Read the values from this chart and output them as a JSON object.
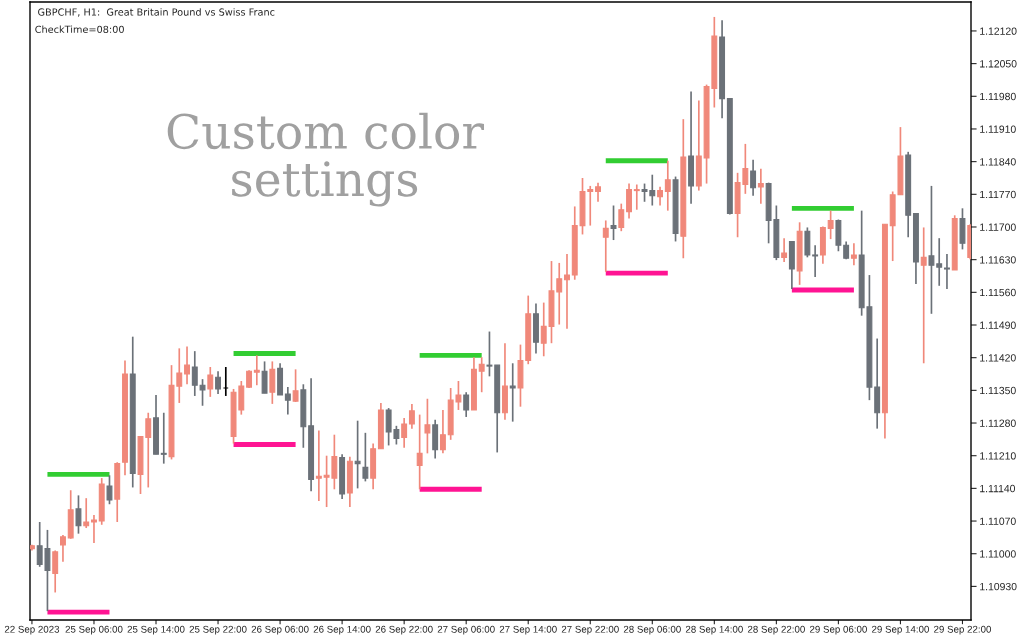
{
  "chart_data": {
    "type": "candlestick",
    "title": "GBPCHF, H1:  Great Britain Pound vs Swiss Franc",
    "subtitle": "CheckTime=08:00",
    "annotations": [
      "Custom color settings"
    ],
    "categories": [
      "22 Sep 2023",
      null,
      null,
      null,
      null,
      null,
      null,
      null,
      "25 Sep 06:00",
      null,
      null,
      null,
      null,
      null,
      null,
      null,
      "25 Sep 14:00",
      null,
      null,
      null,
      null,
      null,
      null,
      null,
      "25 Sep 22:00",
      null,
      null,
      null,
      null,
      null,
      null,
      null,
      "26 Sep 06:00",
      null,
      null,
      null,
      null,
      null,
      null,
      null,
      "26 Sep 14:00",
      null,
      null,
      null,
      null,
      null,
      null,
      null,
      "26 Sep 22:00",
      null,
      null,
      null,
      null,
      null,
      null,
      null,
      "27 Sep 06:00",
      null,
      null,
      null,
      null,
      null,
      null,
      null,
      "27 Sep 14:00",
      null,
      null,
      null,
      null,
      null,
      null,
      null,
      "27 Sep 22:00",
      null,
      null,
      null,
      null,
      null,
      null,
      null,
      "28 Sep 06:00",
      null,
      null,
      null,
      null,
      null,
      null,
      null,
      "28 Sep 14:00",
      null,
      null,
      null,
      null,
      null,
      null,
      null,
      "28 Sep 22:00",
      null,
      null,
      null,
      null,
      null,
      null,
      null,
      "29 Sep 06:00",
      null,
      null,
      null,
      null,
      null,
      null,
      null,
      "29 Sep 14:00",
      null,
      null,
      null,
      null,
      null,
      null,
      null,
      "29 Sep 22:00",
      null
    ],
    "ohlc": [
      [
        1.11011,
        1.11019,
        1.11007,
        1.11017
      ],
      [
        1.11017,
        1.11068,
        1.10972,
        1.10977
      ],
      [
        1.11011,
        1.11051,
        1.10877,
        1.10964
      ],
      [
        1.10958,
        1.11007,
        1.10917,
        1.11004
      ],
      [
        1.11019,
        1.1104,
        1.10983,
        1.11036
      ],
      [
        1.11034,
        1.11136,
        1.11032,
        1.11094
      ],
      [
        1.11096,
        1.11125,
        1.11043,
        1.1106
      ],
      [
        1.1106,
        1.11119,
        1.11055,
        1.11068
      ],
      [
        1.11068,
        1.11083,
        1.11023,
        1.11072
      ],
      [
        1.1107,
        1.11162,
        1.11062,
        1.11149
      ],
      [
        1.11145,
        1.11168,
        1.11106,
        1.11115
      ],
      [
        1.11117,
        1.11196,
        1.11068,
        1.11193
      ],
      [
        1.11196,
        1.11414,
        1.11168,
        1.11385
      ],
      [
        1.11385,
        1.11465,
        1.11142,
        1.11172
      ],
      [
        1.1117,
        1.11251,
        1.11128,
        1.11251
      ],
      [
        1.11249,
        1.11302,
        1.11142,
        1.11289
      ],
      [
        1.11291,
        1.1134,
        1.11213,
        1.11213
      ],
      [
        1.11215,
        1.11302,
        1.11193,
        1.11213
      ],
      [
        1.11208,
        1.11404,
        1.11202,
        1.11361
      ],
      [
        1.11359,
        1.1144,
        1.11323,
        1.11387
      ],
      [
        1.11385,
        1.11444,
        1.11363,
        1.11404
      ],
      [
        1.114,
        1.11434,
        1.11338,
        1.11361
      ],
      [
        1.11361,
        1.11374,
        1.11317,
        1.11351
      ],
      [
        1.11353,
        1.114,
        1.11336,
        1.11383
      ],
      [
        1.11378,
        1.11391,
        1.11342,
        1.11353
      ],
      [
        1.11355,
        1.114,
        1.11338,
        1.11355
      ],
      [
        1.11251,
        1.11353,
        1.11236,
        1.11346
      ],
      [
        1.11308,
        1.1137,
        1.11298,
        1.11359
      ],
      [
        1.11357,
        1.11393,
        1.11355,
        1.11391
      ],
      [
        1.11389,
        1.11425,
        1.11361,
        1.11393
      ],
      [
        1.11391,
        1.11412,
        1.11344,
        1.11344
      ],
      [
        1.11346,
        1.11412,
        1.11321,
        1.11395
      ],
      [
        1.11397,
        1.11408,
        1.1134,
        1.1134
      ],
      [
        1.11342,
        1.11357,
        1.11298,
        1.11329
      ],
      [
        1.11327,
        1.11395,
        1.11325,
        1.11349
      ],
      [
        1.11351,
        1.11363,
        1.11227,
        1.11272
      ],
      [
        1.11274,
        1.11376,
        1.11134,
        1.11159
      ],
      [
        1.11162,
        1.11264,
        1.11113,
        1.11166
      ],
      [
        1.11164,
        1.1121,
        1.111,
        1.11168
      ],
      [
        1.11162,
        1.11255,
        1.11138,
        1.11208
      ],
      [
        1.11206,
        1.11213,
        1.11117,
        1.11128
      ],
      [
        1.1113,
        1.11208,
        1.111,
        1.11198
      ],
      [
        1.11198,
        1.11285,
        1.1114,
        1.11193
      ],
      [
        1.11185,
        1.11259,
        1.11155,
        1.11162
      ],
      [
        1.11162,
        1.11236,
        1.11138,
        1.11225
      ],
      [
        1.11225,
        1.11323,
        1.11225,
        1.11308
      ],
      [
        1.11308,
        1.11312,
        1.11232,
        1.11261
      ],
      [
        1.11266,
        1.11274,
        1.11234,
        1.11247
      ],
      [
        1.11249,
        1.11291,
        1.11227,
        1.11278
      ],
      [
        1.11278,
        1.11321,
        1.11268,
        1.11306
      ],
      [
        1.11189,
        1.11298,
        1.11138,
        1.11215
      ],
      [
        1.11259,
        1.11332,
        1.11215,
        1.11276
      ],
      [
        1.11276,
        1.11287,
        1.11204,
        1.11223
      ],
      [
        1.11223,
        1.11308,
        1.11215,
        1.11255
      ],
      [
        1.11255,
        1.11355,
        1.11244,
        1.11329
      ],
      [
        1.11325,
        1.1137,
        1.11308,
        1.1134
      ],
      [
        1.1134,
        1.11346,
        1.11293,
        1.11308
      ],
      [
        1.11308,
        1.11421,
        1.11308,
        1.11395
      ],
      [
        1.11391,
        1.11421,
        1.11346,
        1.11406
      ],
      [
        1.11404,
        1.11476,
        1.1138,
        1.11402
      ],
      [
        1.11404,
        1.11404,
        1.11217,
        1.11302
      ],
      [
        1.11302,
        1.11451,
        1.11287,
        1.11359
      ],
      [
        1.11359,
        1.11408,
        1.11283,
        1.11355
      ],
      [
        1.11355,
        1.11448,
        1.11315,
        1.11414
      ],
      [
        1.11414,
        1.11553,
        1.11406,
        1.11514
      ],
      [
        1.11514,
        1.11536,
        1.11429,
        1.11453
      ],
      [
        1.11451,
        1.11538,
        1.11423,
        1.11487
      ],
      [
        1.11487,
        1.11627,
        1.11451,
        1.11563
      ],
      [
        1.11561,
        1.11623,
        1.11491,
        1.11589
      ],
      [
        1.11587,
        1.11642,
        1.11482,
        1.11597
      ],
      [
        1.11597,
        1.11744,
        1.11587,
        1.11703
      ],
      [
        1.11703,
        1.11805,
        1.11684,
        1.11776
      ],
      [
        1.11776,
        1.11788,
        1.11703,
        1.1178
      ],
      [
        1.11776,
        1.11795,
        1.11754,
        1.11786
      ],
      [
        1.11678,
        1.11714,
        1.11604,
        1.11697
      ],
      [
        1.11703,
        1.11746,
        1.11672,
        1.11697
      ],
      [
        1.11699,
        1.1175,
        1.11691,
        1.11737
      ],
      [
        1.11733,
        1.11793,
        1.11718,
        1.1178
      ],
      [
        1.11778,
        1.11791,
        1.11737,
        1.1178
      ],
      [
        1.1178,
        1.11793,
        1.11754,
        1.11776
      ],
      [
        1.11778,
        1.11812,
        1.11746,
        1.11767
      ],
      [
        1.11765,
        1.11786,
        1.11746,
        1.11778
      ],
      [
        1.11776,
        1.11842,
        1.11735,
        1.11801
      ],
      [
        1.11801,
        1.11808,
        1.11669,
        1.11686
      ],
      [
        1.1168,
        1.11931,
        1.11633,
        1.1185
      ],
      [
        1.11852,
        1.1199,
        1.1175,
        1.11788
      ],
      [
        1.11788,
        1.11971,
        1.11778,
        1.11852
      ],
      [
        1.11848,
        1.12005,
        1.11793,
        1.12001
      ],
      [
        1.11997,
        1.1215,
        1.11956,
        1.12109
      ],
      [
        1.12107,
        1.12143,
        1.11933,
        1.11975
      ],
      [
        1.11975,
        1.11975,
        1.11727,
        1.11729
      ],
      [
        1.11729,
        1.11816,
        1.11678,
        1.11795
      ],
      [
        1.11791,
        1.11878,
        1.11771,
        1.11825
      ],
      [
        1.1182,
        1.11844,
        1.11767,
        1.11784
      ],
      [
        1.11786,
        1.11825,
        1.1175,
        1.11793
      ],
      [
        1.11793,
        1.11795,
        1.11665,
        1.11714
      ],
      [
        1.11716,
        1.11746,
        1.11629,
        1.11635
      ],
      [
        1.11635,
        1.11676,
        1.11625,
        1.11644
      ],
      [
        1.11669,
        1.11669,
        1.11567,
        1.1161
      ],
      [
        1.11606,
        1.1171,
        1.11576,
        1.11691
      ],
      [
        1.11691,
        1.11699,
        1.11635,
        1.1164
      ],
      [
        1.1164,
        1.11661,
        1.11593,
        1.11638
      ],
      [
        1.1164,
        1.11701,
        1.11621,
        1.11699
      ],
      [
        1.11697,
        1.11735,
        1.11674,
        1.11714
      ],
      [
        1.11714,
        1.11716,
        1.11648,
        1.11661
      ],
      [
        1.11661,
        1.11669,
        1.11631,
        1.11633
      ],
      [
        1.11633,
        1.11665,
        1.11618,
        1.1164
      ],
      [
        1.1164,
        1.11735,
        1.1151,
        1.11527
      ],
      [
        1.11529,
        1.11597,
        1.11329,
        1.11357
      ],
      [
        1.11357,
        1.11461,
        1.11268,
        1.11302
      ],
      [
        1.11302,
        1.11706,
        1.11247,
        1.11706
      ],
      [
        1.11703,
        1.11776,
        1.11627,
        1.11769
      ],
      [
        1.11769,
        1.11914,
        1.11769,
        1.11852
      ],
      [
        1.11854,
        1.11861,
        1.11678,
        1.11725
      ],
      [
        1.11729,
        1.11729,
        1.11578,
        1.11625
      ],
      [
        1.11618,
        1.11699,
        1.11408,
        1.11635
      ],
      [
        1.11638,
        1.11788,
        1.11514,
        1.11618
      ],
      [
        1.11621,
        1.11676,
        1.11574,
        1.11614
      ],
      [
        1.11612,
        1.11642,
        1.11567,
        1.1161
      ],
      [
        1.11608,
        1.11725,
        1.11608,
        1.11718
      ],
      [
        1.11718,
        1.1174,
        1.11652,
        1.11665
      ],
      [
        1.11635,
        1.11706,
        1.11631,
        1.11703
      ]
    ],
    "colors": [
      "#f0887a",
      "#6b7178",
      "#6b7178",
      "#f0887a",
      "#f0887a",
      "#f0887a",
      "#6b7178",
      "#f0887a",
      "#f0887a",
      "#f0887a",
      "#6b7178",
      "#f0887a",
      "#f0887a",
      "#6b7178",
      "#f0887a",
      "#f0887a",
      "#6b7178",
      "#6b7178",
      "#f0887a",
      "#f0887a",
      "#f0887a",
      "#6b7178",
      "#6b7178",
      "#f0887a",
      "#6b7178",
      "#000000",
      "#f0887a",
      "#f0887a",
      "#f0887a",
      "#f0887a",
      "#6b7178",
      "#f0887a",
      "#6b7178",
      "#6b7178",
      "#f0887a",
      "#6b7178",
      "#6b7178",
      "#f0887a",
      "#f0887a",
      "#f0887a",
      "#6b7178",
      "#f0887a",
      "#6b7178",
      "#6b7178",
      "#f0887a",
      "#f0887a",
      "#6b7178",
      "#6b7178",
      "#f0887a",
      "#f0887a",
      "#f0887a",
      "#f0887a",
      "#6b7178",
      "#f0887a",
      "#f0887a",
      "#f0887a",
      "#6b7178",
      "#f0887a",
      "#f0887a",
      "#6b7178",
      "#6b7178",
      "#f0887a",
      "#6b7178",
      "#f0887a",
      "#f0887a",
      "#6b7178",
      "#f0887a",
      "#f0887a",
      "#f0887a",
      "#f0887a",
      "#f0887a",
      "#f0887a",
      "#f0887a",
      "#f0887a",
      "#f0887a",
      "#6b7178",
      "#f0887a",
      "#f0887a",
      "#f0887a",
      "#6b7178",
      "#6b7178",
      "#f0887a",
      "#f0887a",
      "#6b7178",
      "#f0887a",
      "#6b7178",
      "#f0887a",
      "#f0887a",
      "#f0887a",
      "#6b7178",
      "#6b7178",
      "#f0887a",
      "#f0887a",
      "#6b7178",
      "#f0887a",
      "#6b7178",
      "#6b7178",
      "#f0887a",
      "#6b7178",
      "#f0887a",
      "#6b7178",
      "#6b7178",
      "#f0887a",
      "#f0887a",
      "#6b7178",
      "#6b7178",
      "#f0887a",
      "#6b7178",
      "#6b7178",
      "#6b7178",
      "#f0887a",
      "#f0887a",
      "#f0887a",
      "#6b7178",
      "#6b7178",
      "#f0887a",
      "#6b7178",
      "#6b7178",
      "#6b7178",
      "#f0887a",
      "#6b7178",
      "#f0887a"
    ],
    "series": [
      {
        "type": "line",
        "color": "#32cd32",
        "values": [
          null,
          null,
          1.1117,
          1.1117,
          1.1117,
          1.1117,
          1.1117,
          1.1117,
          1.1117,
          1.1117,
          1.1117,
          null,
          null,
          null,
          null,
          null,
          null,
          null,
          null,
          null,
          null,
          null,
          null,
          null,
          null,
          null,
          1.11429,
          1.11429,
          1.11429,
          1.11429,
          1.11429,
          1.11429,
          1.11429,
          1.11429,
          1.11429,
          null,
          null,
          null,
          null,
          null,
          null,
          null,
          null,
          null,
          null,
          null,
          null,
          null,
          null,
          null,
          1.11425,
          1.11425,
          1.11425,
          1.11425,
          1.11425,
          1.11425,
          1.11425,
          1.11425,
          1.11425,
          null,
          null,
          null,
          null,
          null,
          null,
          null,
          null,
          null,
          null,
          null,
          null,
          null,
          null,
          null,
          1.11842,
          1.11842,
          1.11842,
          1.11842,
          1.11842,
          1.11842,
          1.11842,
          1.11842,
          1.11842,
          null,
          null,
          null,
          null,
          null,
          null,
          null,
          null,
          null,
          null,
          null,
          null,
          null,
          null,
          null,
          1.1174,
          1.1174,
          1.1174,
          1.1174,
          1.1174,
          1.1174,
          1.1174,
          1.1174,
          1.1174,
          null,
          null,
          null,
          null,
          null,
          null,
          null,
          null,
          null,
          null,
          null,
          null,
          null,
          null,
          null
        ]
      },
      {
        "type": "line",
        "color": "#ff1493",
        "values": [
          null,
          null,
          1.10875,
          1.10875,
          1.10875,
          1.10875,
          1.10875,
          1.10875,
          1.10875,
          1.10875,
          1.10875,
          null,
          null,
          null,
          null,
          null,
          null,
          null,
          null,
          null,
          null,
          null,
          null,
          null,
          null,
          null,
          1.11234,
          1.11234,
          1.11234,
          1.11234,
          1.11234,
          1.11234,
          1.11234,
          1.11234,
          1.11234,
          null,
          null,
          null,
          null,
          null,
          null,
          null,
          null,
          null,
          null,
          null,
          null,
          null,
          null,
          null,
          1.11138,
          1.11138,
          1.11138,
          1.11138,
          1.11138,
          1.11138,
          1.11138,
          1.11138,
          1.11138,
          null,
          null,
          null,
          null,
          null,
          null,
          null,
          null,
          null,
          null,
          null,
          null,
          null,
          null,
          null,
          1.11601,
          1.11601,
          1.11601,
          1.11601,
          1.11601,
          1.11601,
          1.11601,
          1.11601,
          1.11601,
          null,
          null,
          null,
          null,
          null,
          null,
          null,
          null,
          null,
          null,
          null,
          null,
          null,
          null,
          null,
          1.11565,
          1.11565,
          1.11565,
          1.11565,
          1.11565,
          1.11565,
          1.11565,
          1.11565,
          1.11565,
          null,
          null,
          null,
          null,
          null,
          null,
          null,
          null,
          null,
          null,
          null,
          null,
          null,
          null,
          null
        ]
      }
    ],
    "ylim": [
      1.10858,
      1.12182
    ],
    "yticks": [
      {
        "value": 1.1093,
        "label": "1.10930"
      },
      {
        "value": 1.11,
        "label": "1.11000"
      },
      {
        "value": 1.1107,
        "label": "1.11070"
      },
      {
        "value": 1.1114,
        "label": "1.11140"
      },
      {
        "value": 1.1121,
        "label": "1.11210"
      },
      {
        "value": 1.1128,
        "label": "1.11280"
      },
      {
        "value": 1.1135,
        "label": "1.11350"
      },
      {
        "value": 1.1142,
        "label": "1.11420"
      },
      {
        "value": 1.1149,
        "label": "1.11490"
      },
      {
        "value": 1.1156,
        "label": "1.11560"
      },
      {
        "value": 1.1163,
        "label": "1.11630"
      },
      {
        "value": 1.117,
        "label": "1.11700"
      },
      {
        "value": 1.1177,
        "label": "1.11770"
      },
      {
        "value": 1.1184,
        "label": "1.11840"
      },
      {
        "value": 1.1191,
        "label": "1.11910"
      },
      {
        "value": 1.1198,
        "label": "1.11980"
      },
      {
        "value": 1.1205,
        "label": "1.12050"
      },
      {
        "value": 1.1212,
        "label": "1.12120"
      }
    ],
    "grid": false,
    "legend": false
  }
}
